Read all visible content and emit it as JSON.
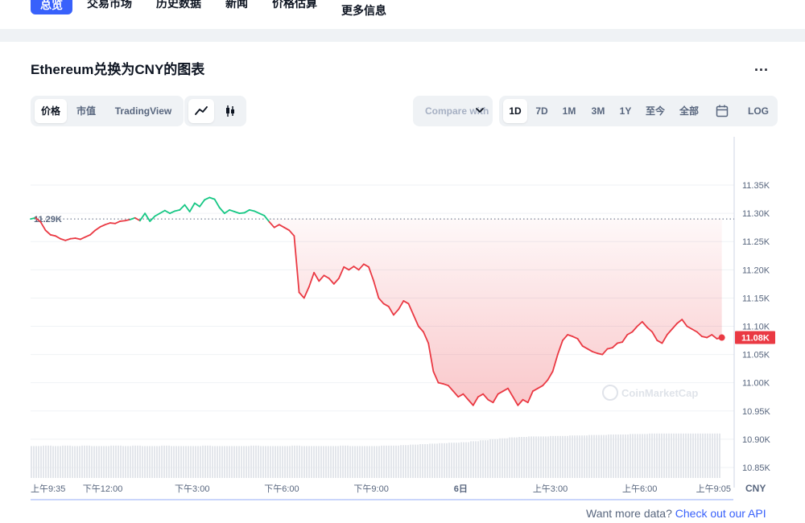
{
  "nav": {
    "items": [
      "总览",
      "交易市场",
      "历史数据",
      "新闻",
      "价格估算"
    ],
    "more": "更多信息"
  },
  "chart_card": {
    "title": "Ethereum兑换为CNY的图表",
    "more_label": "...",
    "type_tabs": [
      "价格",
      "市值",
      "TradingView"
    ],
    "compare_label": "Compare with",
    "ranges": [
      "1D",
      "7D",
      "1M",
      "3M",
      "1Y",
      "至今",
      "全部"
    ],
    "log_label": "LOG",
    "active_range": "1D",
    "watermark": "CoinMarketCap"
  },
  "chart_data": {
    "type": "line",
    "currency_label": "CNY",
    "reference_label": "11.29K",
    "reference_value": 11290,
    "current_label": "11.08K",
    "current_value": 11080,
    "ylim": [
      10820,
      11380
    ],
    "yticks": [
      {
        "v": 11350,
        "label": "11.35K"
      },
      {
        "v": 11300,
        "label": "11.30K"
      },
      {
        "v": 11250,
        "label": "11.25K"
      },
      {
        "v": 11200,
        "label": "11.20K"
      },
      {
        "v": 11150,
        "label": "11.15K"
      },
      {
        "v": 11100,
        "label": "11.10K"
      },
      {
        "v": 11050,
        "label": "11.05K"
      },
      {
        "v": 11000,
        "label": "11.00K"
      },
      {
        "v": 10950,
        "label": "10.95K"
      },
      {
        "v": 10900,
        "label": "10.90K"
      },
      {
        "v": 10850,
        "label": "10.85K"
      }
    ],
    "xlim": [
      0,
      1410
    ],
    "xticks": [
      {
        "t": 0,
        "label": "上午9:35"
      },
      {
        "t": 145,
        "label": "下午12:00"
      },
      {
        "t": 325,
        "label": "下午3:00"
      },
      {
        "t": 505,
        "label": "下午6:00"
      },
      {
        "t": 685,
        "label": "下午9:00"
      },
      {
        "t": 865,
        "label": "6日"
      },
      {
        "t": 1045,
        "label": "上午3:00"
      },
      {
        "t": 1225,
        "label": "上午6:00"
      },
      {
        "t": 1390,
        "label": "上午9:05"
      }
    ],
    "nav_xticks": [
      {
        "t": 145,
        "label": "下午12:00"
      },
      {
        "t": 325,
        "label": "下午3:00"
      },
      {
        "t": 505,
        "label": "下午6:00"
      },
      {
        "t": 685,
        "label": "下午9:00"
      },
      {
        "t": 865,
        "label": "6日"
      },
      {
        "t": 1045,
        "label": "上午3:00"
      },
      {
        "t": 1225,
        "label": "上午6:00"
      }
    ],
    "series": [
      {
        "t": [
          0,
          10,
          20,
          30,
          40,
          50,
          60,
          70,
          80,
          90,
          100,
          110,
          120,
          130,
          140,
          150,
          160,
          170,
          180,
          190,
          200,
          210,
          220,
          230,
          240,
          250,
          260,
          270,
          280,
          290,
          300,
          310,
          320,
          330,
          340,
          350,
          360,
          370,
          380,
          390,
          400,
          410,
          420,
          430,
          440,
          450,
          460,
          470,
          480,
          490,
          500,
          510,
          520,
          530,
          540,
          550,
          560,
          570,
          580,
          590,
          600,
          610,
          620,
          630,
          640,
          650,
          660,
          670,
          680,
          690,
          700,
          710,
          720,
          730,
          740,
          750,
          760,
          770,
          780,
          790,
          800,
          810,
          820,
          830,
          840,
          850,
          860,
          870,
          880,
          890,
          900,
          910,
          920,
          930,
          940,
          950,
          960,
          970,
          980,
          990,
          1000,
          1010,
          1020,
          1030,
          1040,
          1050,
          1060,
          1070,
          1080,
          1090,
          1100,
          1110,
          1120,
          1130,
          1140,
          1150,
          1160,
          1170,
          1180,
          1190,
          1200,
          1210,
          1220,
          1230,
          1240,
          1250,
          1260,
          1270,
          1280,
          1290,
          1300,
          1310,
          1320,
          1330,
          1340,
          1350,
          1360,
          1370,
          1380,
          1390
        ],
        "v": [
          11290,
          11292,
          11285,
          11270,
          11262,
          11260,
          11255,
          11252,
          11255,
          11256,
          11254,
          11258,
          11262,
          11270,
          11276,
          11280,
          11283,
          11282,
          11286,
          11287,
          11289,
          11292,
          11287,
          11300,
          11286,
          11295,
          11300,
          11305,
          11300,
          11304,
          11306,
          11315,
          11303,
          11318,
          11312,
          11324,
          11328,
          11325,
          11310,
          11300,
          11306,
          11303,
          11300,
          11301,
          11306,
          11304,
          11300,
          11296,
          11285,
          11275,
          11280,
          11275,
          11270,
          11260,
          11160,
          11150,
          11170,
          11195,
          11180,
          11190,
          11185,
          11175,
          11185,
          11205,
          11200,
          11206,
          11200,
          11210,
          11205,
          11180,
          11150,
          11140,
          11135,
          11120,
          11130,
          11145,
          11140,
          11120,
          11100,
          11090,
          11070,
          11020,
          11000,
          10998,
          10995,
          10985,
          10975,
          10980,
          10970,
          10960,
          10975,
          10980,
          10970,
          10965,
          10980,
          10985,
          10990,
          10975,
          10960,
          10970,
          10965,
          10985,
          10990,
          10995,
          11005,
          11020,
          11050,
          11075,
          11085,
          11082,
          11078,
          11065,
          11060,
          11055,
          11052,
          11050,
          11060,
          11062,
          11070,
          11072,
          11085,
          11090,
          11100,
          11108,
          11098,
          11090,
          11075,
          11070,
          11085,
          11095,
          11105,
          11112,
          11100,
          11095,
          11090,
          11082,
          11080,
          11085,
          11078,
          11080
        ]
      }
    ],
    "volume": {
      "t": [
        0,
        20,
        40,
        60,
        80,
        100,
        120,
        140,
        160,
        180,
        200,
        220,
        240,
        260,
        280,
        300,
        320,
        340,
        360,
        380,
        400,
        420,
        440,
        460,
        480,
        500,
        520,
        540,
        560,
        580,
        600,
        620,
        640,
        660,
        680,
        700,
        720,
        740,
        760,
        780,
        800,
        820,
        840,
        860,
        880,
        900,
        920,
        940,
        960,
        980,
        1000,
        1020,
        1040,
        1060,
        1080,
        1100,
        1120,
        1140,
        1160,
        1180,
        1200,
        1220,
        1240,
        1260,
        1280,
        1300,
        1320,
        1340,
        1360,
        1380,
        1390
      ],
      "v": [
        0.66,
        0.67,
        0.66,
        0.67,
        0.66,
        0.67,
        0.66,
        0.66,
        0.67,
        0.66,
        0.67,
        0.66,
        0.66,
        0.67,
        0.66,
        0.66,
        0.66,
        0.67,
        0.66,
        0.66,
        0.66,
        0.66,
        0.67,
        0.66,
        0.66,
        0.66,
        0.67,
        0.66,
        0.66,
        0.66,
        0.66,
        0.67,
        0.66,
        0.66,
        0.66,
        0.67,
        0.67,
        0.68,
        0.69,
        0.7,
        0.71,
        0.72,
        0.73,
        0.74,
        0.76,
        0.78,
        0.8,
        0.82,
        0.84,
        0.85,
        0.86,
        0.86,
        0.87,
        0.87,
        0.88,
        0.88,
        0.89,
        0.89,
        0.9,
        0.9,
        0.91,
        0.91,
        0.92,
        0.92,
        0.92,
        0.92,
        0.92,
        0.92,
        0.92,
        0.92,
        0.91
      ]
    }
  },
  "footer": {
    "prefix": "Want more data? ",
    "link": "Check out our API"
  }
}
